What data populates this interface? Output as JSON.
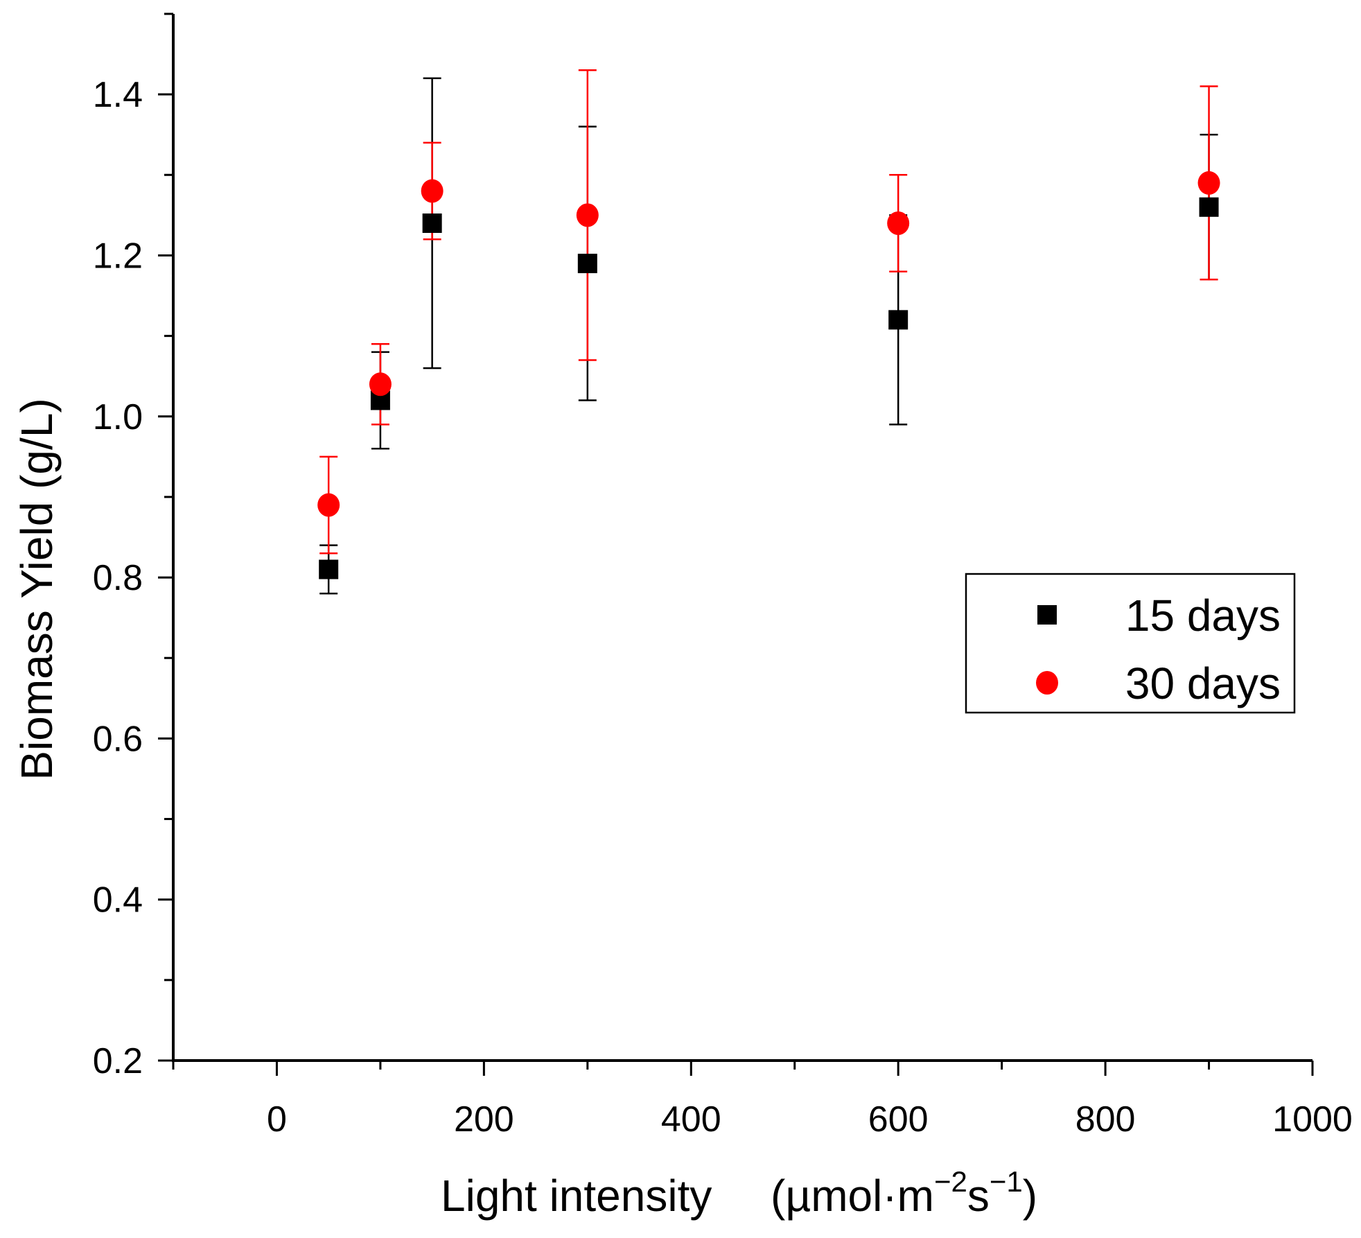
{
  "chart_data": {
    "type": "scatter",
    "title": "",
    "xlabel": "Light intensity",
    "xlabel_unit": {
      "open": "(",
      "base": "µmol·m",
      "exp1": "−2",
      "mid": "s",
      "exp2": "−1",
      "close": ")"
    },
    "ylabel": "Biomass Yield (g/L)",
    "xlim": [
      -100,
      1000
    ],
    "ylim": [
      0.2,
      1.5
    ],
    "x_ticks": [
      0,
      200,
      400,
      600,
      800,
      1000
    ],
    "x_tick_labels": [
      "0",
      "200",
      "400",
      "600",
      "800",
      "1000"
    ],
    "x_minor_ticks": [
      -100,
      100,
      300,
      500,
      700,
      900
    ],
    "y_ticks": [
      0.2,
      0.4,
      0.6,
      0.8,
      1.0,
      1.2,
      1.4
    ],
    "y_tick_labels": [
      "0.2",
      "0.4",
      "0.6",
      "0.8",
      "1.0",
      "1.2",
      "1.4"
    ],
    "y_minor_ticks": [
      0.3,
      0.5,
      0.7,
      0.9,
      1.1,
      1.3,
      1.5
    ],
    "grid": false,
    "legend_position": "right",
    "series": [
      {
        "name": "15 days",
        "color": "#000000",
        "marker": "square",
        "x": [
          50,
          100,
          150,
          300,
          600,
          900
        ],
        "y": [
          0.81,
          1.02,
          1.24,
          1.19,
          1.12,
          1.26
        ],
        "y_err_low": [
          0.78,
          0.96,
          1.06,
          1.02,
          0.99,
          1.17
        ],
        "y_err_high": [
          0.84,
          1.08,
          1.42,
          1.36,
          1.25,
          1.35
        ]
      },
      {
        "name": "30 days",
        "color": "#ff0000",
        "marker": "circle",
        "x": [
          50,
          100,
          150,
          300,
          600,
          900
        ],
        "y": [
          0.89,
          1.04,
          1.28,
          1.25,
          1.24,
          1.29
        ],
        "y_err_low": [
          0.83,
          0.99,
          1.22,
          1.07,
          1.18,
          1.17
        ],
        "y_err_high": [
          0.95,
          1.09,
          1.34,
          1.43,
          1.3,
          1.41
        ]
      }
    ]
  }
}
